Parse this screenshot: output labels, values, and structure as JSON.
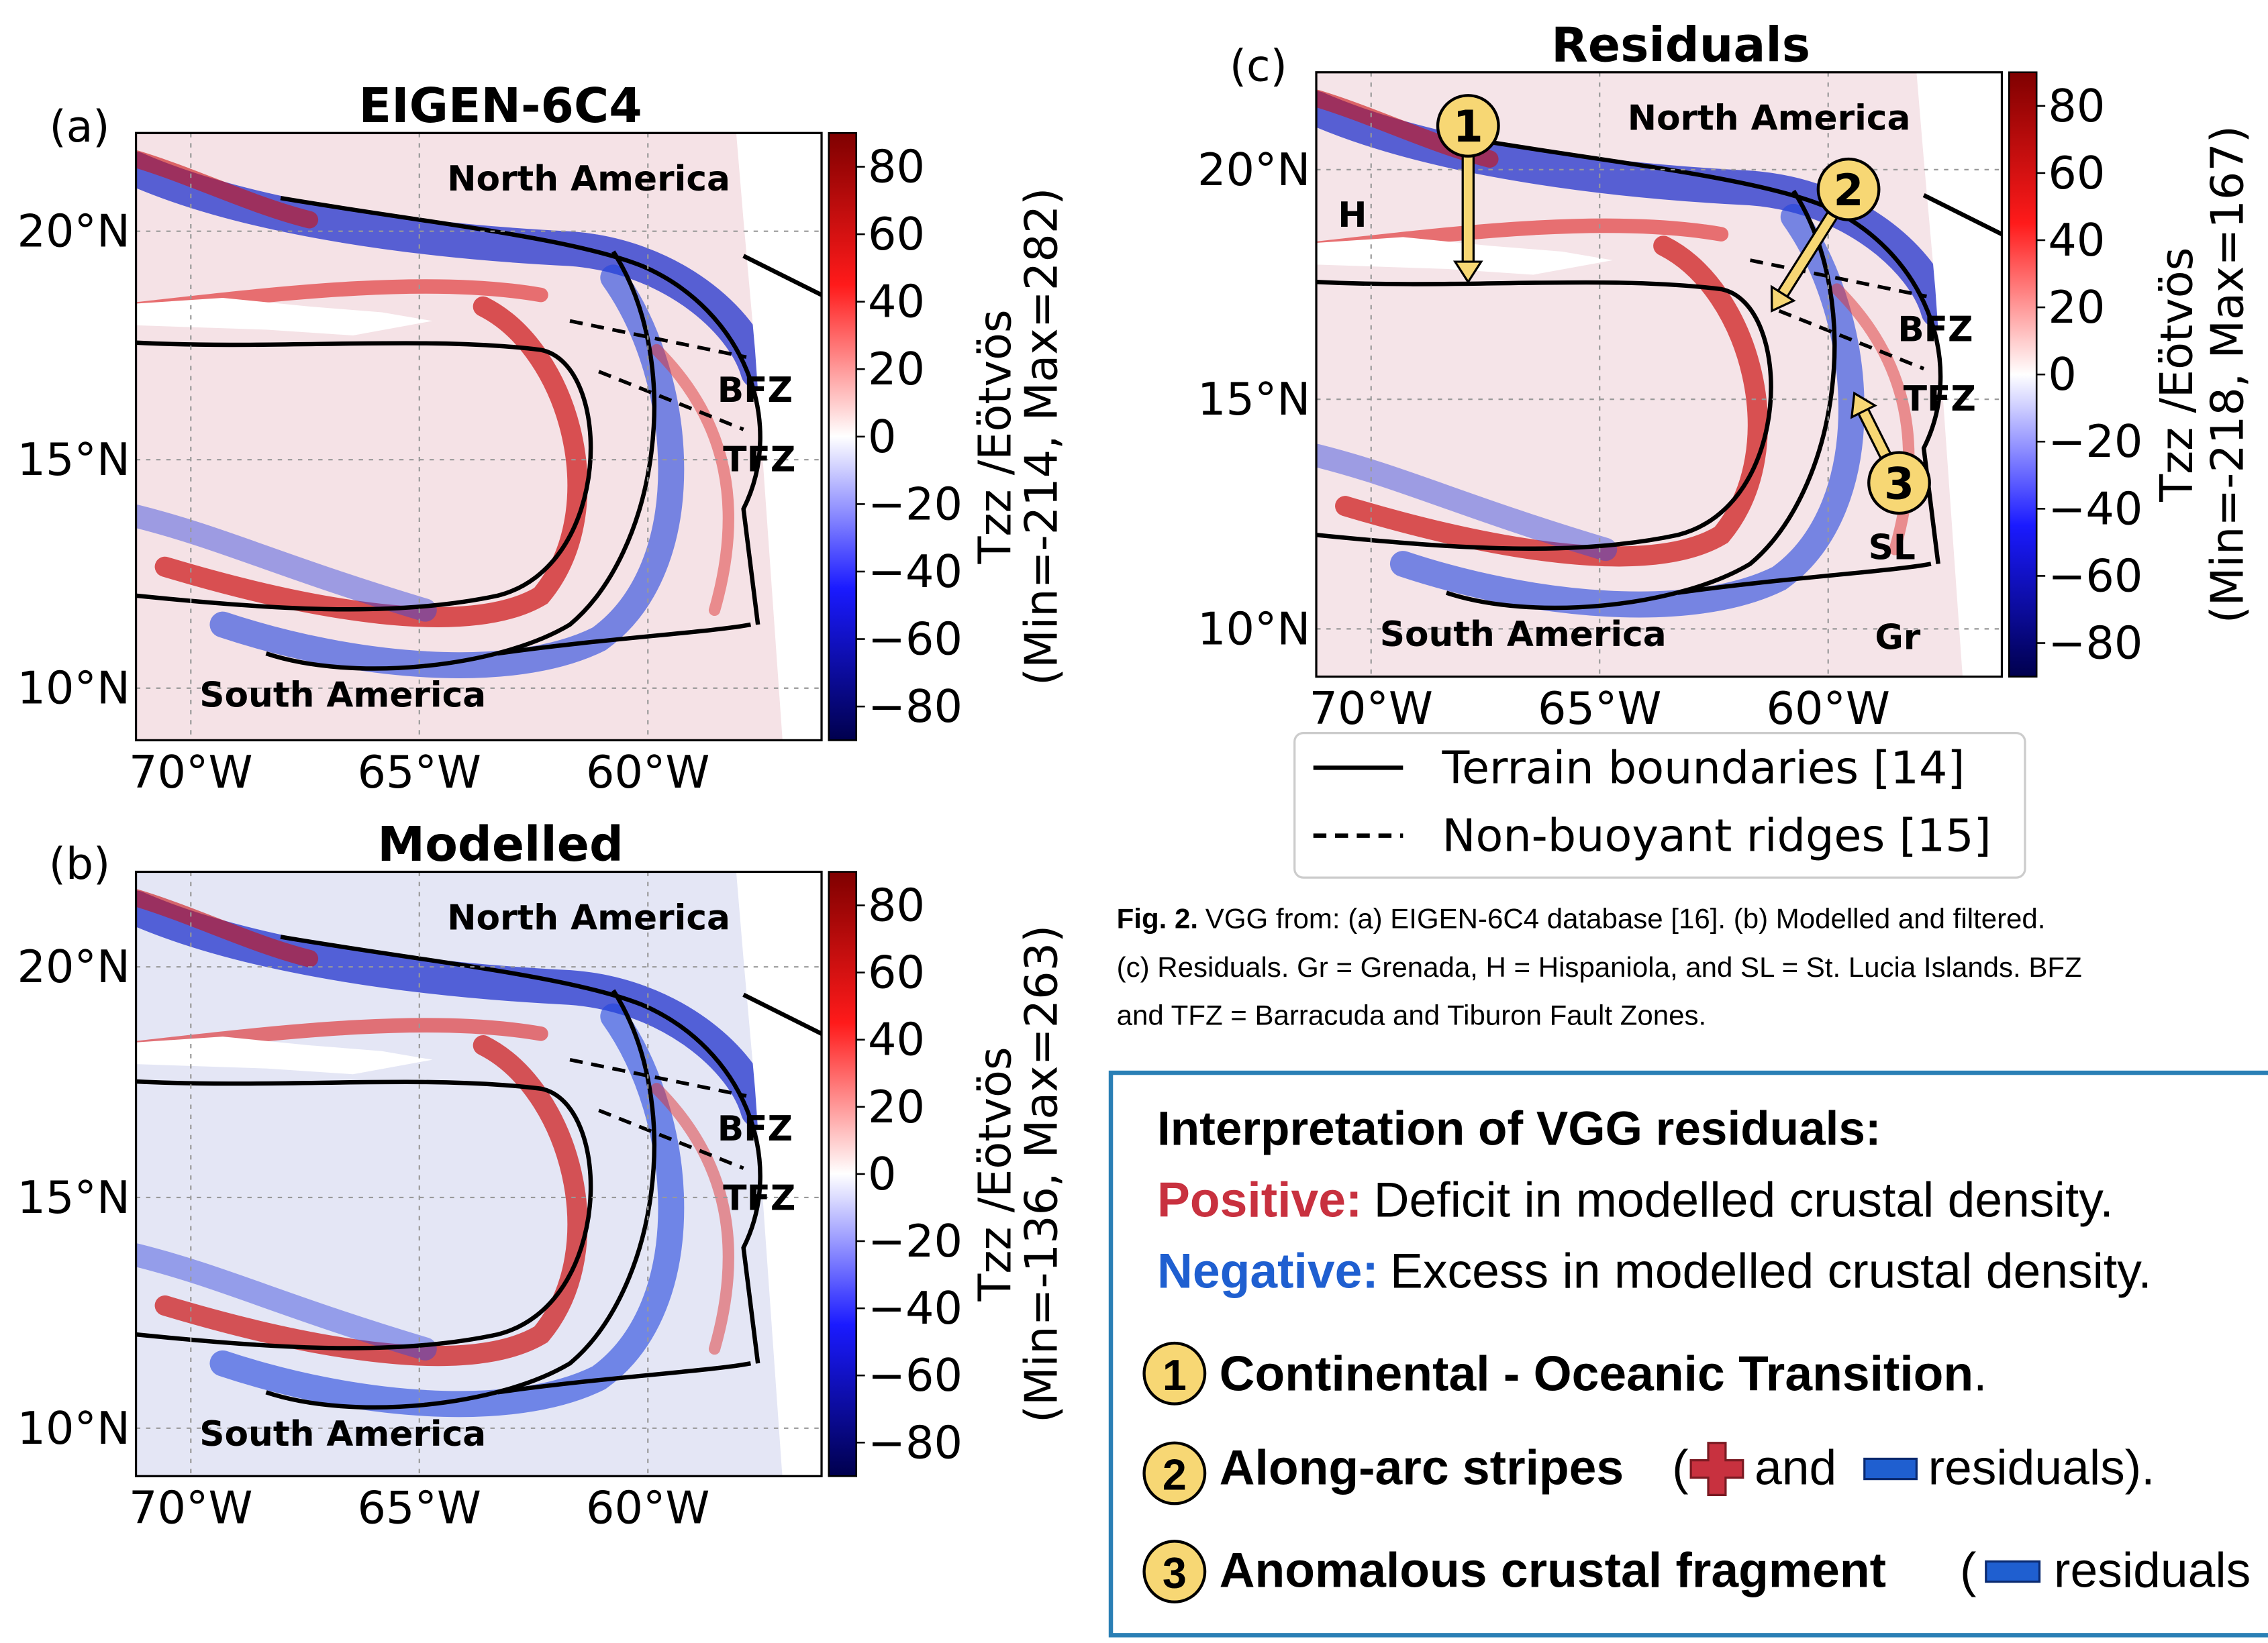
{
  "chart_data": [
    {
      "type": "map",
      "panel_label": "(a)",
      "title": "EIGEN-6C4",
      "xlim": [
        -71.2,
        -56.2
      ],
      "ylim": [
        8.86,
        22.15
      ],
      "xticks": [
        {
          "value": -70,
          "label": "70°W"
        },
        {
          "value": -65,
          "label": "65°W"
        },
        {
          "value": -60,
          "label": "60°W"
        }
      ],
      "yticks": [
        {
          "value": 10,
          "label": "10°N"
        },
        {
          "value": 15,
          "label": "15°N"
        },
        {
          "value": 20,
          "label": "20°N"
        }
      ],
      "clim": [
        -90,
        90
      ],
      "cticks": [
        80,
        60,
        40,
        20,
        0,
        {
          "value": -20,
          "label": "−20"
        },
        {
          "value": -40,
          "label": "−40"
        },
        {
          "value": -60,
          "label": "−60"
        },
        {
          "value": -80,
          "label": "−80"
        }
      ],
      "colorbar_label": "Tzz /Eötvös",
      "colorbar_note": "(Min=-214, Max=282)",
      "region_labels": [
        "North America",
        "South America",
        "BFZ",
        "TFZ"
      ]
    },
    {
      "type": "map",
      "panel_label": "(b)",
      "title": "Modelled",
      "xlim": [
        -71.2,
        -56.2
      ],
      "ylim": [
        8.96,
        22.06
      ],
      "xticks": [
        {
          "value": -70,
          "label": "70°W"
        },
        {
          "value": -65,
          "label": "65°W"
        },
        {
          "value": -60,
          "label": "60°W"
        }
      ],
      "yticks": [
        {
          "value": 10,
          "label": "10°N"
        },
        {
          "value": 15,
          "label": "15°N"
        },
        {
          "value": 20,
          "label": "20°N"
        }
      ],
      "clim": [
        -90,
        90
      ],
      "cticks": [
        80,
        60,
        40,
        20,
        0,
        {
          "value": -20,
          "label": "−20"
        },
        {
          "value": -40,
          "label": "−40"
        },
        {
          "value": -60,
          "label": "−60"
        },
        {
          "value": -80,
          "label": "−80"
        }
      ],
      "colorbar_label": "Tzz /Eötvös",
      "colorbar_note": "(Min=-136, Max=263)",
      "region_labels": [
        "North America",
        "South America",
        "BFZ",
        "TFZ"
      ]
    },
    {
      "type": "map",
      "panel_label": "(c)",
      "title": "Residuals",
      "xlim": [
        -71.2,
        -56.2
      ],
      "ylim": [
        8.96,
        22.12
      ],
      "xticks": [
        {
          "value": -70,
          "label": "70°W"
        },
        {
          "value": -65,
          "label": "65°W"
        },
        {
          "value": -60,
          "label": "60°W"
        }
      ],
      "yticks": [
        {
          "value": 10,
          "label": "10°N"
        },
        {
          "value": 15,
          "label": "15°N"
        },
        {
          "value": 20,
          "label": "20°N"
        }
      ],
      "clim": [
        -90,
        90
      ],
      "cticks": [
        80,
        60,
        40,
        20,
        0,
        {
          "value": -20,
          "label": "−20"
        },
        {
          "value": -40,
          "label": "−40"
        },
        {
          "value": -60,
          "label": "−60"
        },
        {
          "value": -80,
          "label": "−80"
        }
      ],
      "colorbar_label": "Tzz /Eötvös",
      "colorbar_note": "(Min=-218, Max=167)",
      "region_labels": [
        "North America",
        "South America",
        "BFZ",
        "TFZ",
        "H",
        "SL",
        "Gr"
      ],
      "markers": [
        "1",
        "2",
        "3"
      ]
    }
  ],
  "legend": [
    {
      "label": "Terrain boundaries [14]",
      "style": "solid"
    },
    {
      "label": "Non-buoyant ridges [15]",
      "style": "dashed"
    }
  ],
  "caption": {
    "label": "Fig. 2.",
    "lines": [
      "VGG from: (a) EIGEN-6C4 database [16]. (b) Modelled and filtered.",
      "(c) Residuals. Gr = Grenada, H = Hispaniola, and SL = St. Lucia Islands. BFZ",
      "and TFZ = Barracuda and Tiburon Fault Zones."
    ]
  },
  "interpretation": {
    "title": "Interpretation of VGG residuals:",
    "positive": {
      "key": "Positive:",
      "text": "Deficit in modelled crustal density."
    },
    "negative": {
      "key": "Negative:",
      "text": "Excess in modelled crustal density."
    },
    "items": [
      {
        "number": "1",
        "bold": "Continental - Oceanic Transition",
        "parts": [
          "."
        ]
      },
      {
        "number": "2",
        "bold": "Along-arc stripes",
        "parts": [
          "(",
          "and",
          "residuals)."
        ]
      },
      {
        "number": "3",
        "bold": "Anomalous crustal fragment",
        "parts": [
          "(",
          "residuals"
        ]
      }
    ]
  }
}
